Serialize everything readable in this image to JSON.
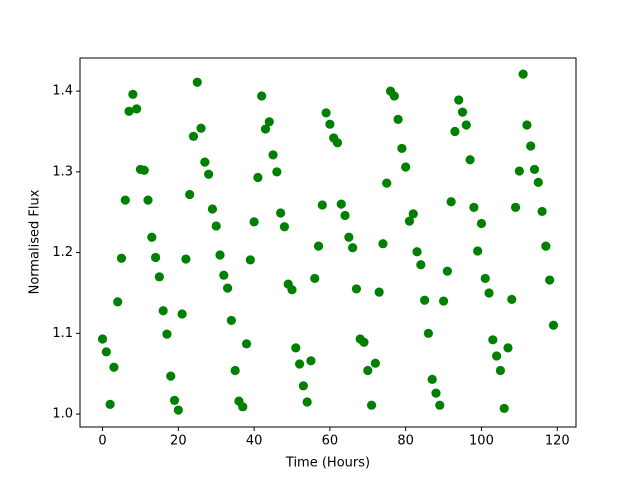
{
  "chart_data": {
    "type": "scatter",
    "xlabel": "Time (Hours)",
    "ylabel": "Normalised Flux",
    "color": "#008000",
    "x": [
      0,
      1,
      2,
      3,
      4,
      5,
      6,
      7,
      8,
      9,
      10,
      11,
      12,
      13,
      14,
      15,
      16,
      17,
      18,
      19,
      20,
      21,
      22,
      23,
      24,
      25,
      26,
      27,
      28,
      29,
      30,
      31,
      32,
      33,
      34,
      35,
      36,
      37,
      38,
      39,
      40,
      41,
      42,
      43,
      44,
      45,
      46,
      47,
      48,
      49,
      50,
      51,
      52,
      53,
      54,
      55,
      56,
      57,
      58,
      59,
      60,
      61,
      62,
      63,
      64,
      65,
      66,
      67,
      68,
      69,
      70,
      71,
      72,
      73,
      74,
      75,
      76,
      77,
      78,
      79,
      80,
      81,
      82,
      83,
      84,
      85,
      86,
      87,
      88,
      89,
      90,
      91,
      92,
      93,
      94,
      95,
      96,
      97,
      98,
      99,
      100,
      101,
      102,
      103,
      104,
      105,
      106,
      107,
      108,
      109,
      110,
      111,
      112,
      113,
      114,
      115,
      116,
      117,
      118,
      119
    ],
    "values": [
      1.093,
      1.077,
      1.012,
      1.058,
      1.139,
      1.193,
      1.265,
      1.375,
      1.396,
      1.378,
      1.303,
      1.302,
      1.265,
      1.219,
      1.194,
      1.17,
      1.128,
      1.099,
      1.047,
      1.017,
      1.005,
      1.124,
      1.192,
      1.272,
      1.344,
      1.411,
      1.354,
      1.312,
      1.297,
      1.254,
      1.233,
      1.197,
      1.172,
      1.156,
      1.116,
      1.054,
      1.016,
      1.009,
      1.087,
      1.191,
      1.238,
      1.293,
      1.394,
      1.353,
      1.362,
      1.321,
      1.3,
      1.249,
      1.232,
      1.161,
      1.154,
      1.082,
      1.062,
      1.035,
      1.015,
      1.066,
      1.168,
      1.208,
      1.259,
      1.373,
      1.359,
      1.342,
      1.336,
      1.26,
      1.246,
      1.219,
      1.206,
      1.155,
      1.093,
      1.089,
      1.054,
      1.011,
      1.063,
      1.151,
      1.211,
      1.286,
      1.4,
      1.394,
      1.365,
      1.329,
      1.306,
      1.239,
      1.248,
      1.201,
      1.185,
      1.141,
      1.1,
      1.043,
      1.026,
      1.011,
      1.14,
      1.177,
      1.263,
      1.35,
      1.389,
      1.374,
      1.358,
      1.315,
      1.256,
      1.202,
      1.236,
      1.168,
      1.15,
      1.092,
      1.072,
      1.054,
      1.007,
      1.082,
      1.142,
      1.256,
      1.301,
      1.421,
      1.358,
      1.332,
      1.303,
      1.287,
      1.251,
      1.208,
      1.166,
      1.11
    ],
    "xlim": [
      -5.95,
      124.95
    ],
    "xticks": [
      0,
      20,
      40,
      60,
      80,
      100,
      120
    ],
    "ylim": [
      0.984,
      1.441
    ],
    "yticks": [
      {
        "value": 1,
        "label": "1.0"
      },
      1.1,
      1.2,
      1.3,
      1.4
    ]
  }
}
